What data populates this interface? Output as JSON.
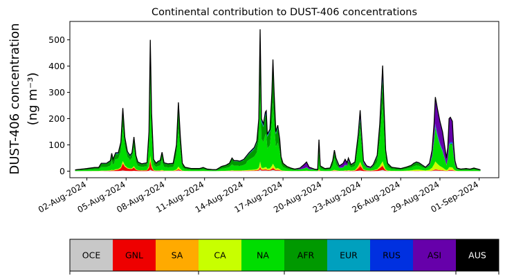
{
  "chart_data": {
    "type": "area",
    "stacked": true,
    "title": "Continental contribution to DUST-406 concentrations",
    "ylabel_line1": "DUST-406 concentration",
    "ylabel_line2": "(ng m⁻³)",
    "ylim": [
      -25,
      570
    ],
    "yticks": [
      0,
      100,
      200,
      300,
      400,
      500
    ],
    "xlim_days": [
      -1.3,
      31.5
    ],
    "xtick_labels": [
      "02-Aug-2024",
      "05-Aug-2024",
      "08-Aug-2024",
      "11-Aug-2024",
      "14-Aug-2024",
      "17-Aug-2024",
      "20-Aug-2024",
      "23-Aug-2024",
      "26-Aug-2024",
      "29-Aug-2024",
      "01-Sep-2024"
    ],
    "grid": false,
    "series": [
      {
        "name": "OCE",
        "color": "#c8c8c8"
      },
      {
        "name": "GNL",
        "color": "#ee0000"
      },
      {
        "name": "SA",
        "color": "#ffaa00"
      },
      {
        "name": "CA",
        "color": "#c8ff00"
      },
      {
        "name": "NA",
        "color": "#00dd00"
      },
      {
        "name": "AFR",
        "color": "#009900"
      },
      {
        "name": "EUR",
        "color": "#00a0be"
      },
      {
        "name": "RUS",
        "color": "#0030e0"
      },
      {
        "name": "ASI",
        "color": "#6600aa"
      },
      {
        "name": "AUS",
        "color": "#000000"
      }
    ],
    "total_points": [
      [
        -0.9,
        5
      ],
      [
        0.0,
        10
      ],
      [
        0.6,
        14
      ],
      [
        0.9,
        14
      ],
      [
        1.1,
        30
      ],
      [
        1.5,
        30
      ],
      [
        1.8,
        40
      ],
      [
        1.9,
        68
      ],
      [
        2.0,
        45
      ],
      [
        2.2,
        70
      ],
      [
        2.4,
        70
      ],
      [
        2.6,
        110
      ],
      [
        2.75,
        240
      ],
      [
        2.9,
        130
      ],
      [
        3.1,
        75
      ],
      [
        3.3,
        60
      ],
      [
        3.45,
        70
      ],
      [
        3.6,
        130
      ],
      [
        3.75,
        60
      ],
      [
        3.9,
        35
      ],
      [
        4.2,
        28
      ],
      [
        4.6,
        32
      ],
      [
        4.75,
        150
      ],
      [
        4.85,
        500
      ],
      [
        4.95,
        220
      ],
      [
        5.1,
        45
      ],
      [
        5.3,
        30
      ],
      [
        5.45,
        38
      ],
      [
        5.6,
        40
      ],
      [
        5.75,
        72
      ],
      [
        5.9,
        32
      ],
      [
        6.2,
        28
      ],
      [
        6.6,
        30
      ],
      [
        6.85,
        100
      ],
      [
        7.0,
        262
      ],
      [
        7.15,
        130
      ],
      [
        7.3,
        30
      ],
      [
        7.5,
        15
      ],
      [
        8.0,
        10
      ],
      [
        8.6,
        10
      ],
      [
        8.9,
        14
      ],
      [
        9.2,
        8
      ],
      [
        9.6,
        6
      ],
      [
        9.9,
        6
      ],
      [
        10.3,
        18
      ],
      [
        10.6,
        22
      ],
      [
        10.9,
        30
      ],
      [
        11.1,
        50
      ],
      [
        11.25,
        40
      ],
      [
        11.5,
        40
      ],
      [
        11.7,
        38
      ],
      [
        12.0,
        45
      ],
      [
        12.4,
        70
      ],
      [
        12.8,
        90
      ],
      [
        13.0,
        115
      ],
      [
        13.15,
        200
      ],
      [
        13.25,
        540
      ],
      [
        13.35,
        200
      ],
      [
        13.5,
        180
      ],
      [
        13.65,
        225
      ],
      [
        13.72,
        230
      ],
      [
        13.8,
        140
      ],
      [
        14.0,
        160
      ],
      [
        14.15,
        300
      ],
      [
        14.23,
        425
      ],
      [
        14.32,
        300
      ],
      [
        14.45,
        150
      ],
      [
        14.6,
        175
      ],
      [
        14.75,
        120
      ],
      [
        14.85,
        55
      ],
      [
        15.0,
        30
      ],
      [
        15.3,
        18
      ],
      [
        15.6,
        12
      ],
      [
        15.9,
        8
      ],
      [
        16.3,
        12
      ],
      [
        16.6,
        25
      ],
      [
        16.8,
        35
      ],
      [
        17.0,
        15
      ],
      [
        17.4,
        8
      ],
      [
        17.65,
        6
      ],
      [
        17.75,
        120
      ],
      [
        17.85,
        20
      ],
      [
        18.2,
        10
      ],
      [
        18.6,
        12
      ],
      [
        18.8,
        40
      ],
      [
        18.93,
        80
      ],
      [
        19.05,
        50
      ],
      [
        19.3,
        20
      ],
      [
        19.6,
        30
      ],
      [
        19.75,
        45
      ],
      [
        19.9,
        32
      ],
      [
        20.0,
        50
      ],
      [
        20.2,
        25
      ],
      [
        20.5,
        35
      ],
      [
        20.75,
        140
      ],
      [
        20.9,
        232
      ],
      [
        21.0,
        150
      ],
      [
        21.15,
        40
      ],
      [
        21.4,
        20
      ],
      [
        21.7,
        15
      ],
      [
        21.9,
        25
      ],
      [
        22.2,
        60
      ],
      [
        22.4,
        180
      ],
      [
        22.55,
        330
      ],
      [
        22.62,
        402
      ],
      [
        22.72,
        250
      ],
      [
        22.85,
        80
      ],
      [
        23.0,
        30
      ],
      [
        23.3,
        15
      ],
      [
        23.7,
        12
      ],
      [
        24.0,
        10
      ],
      [
        24.4,
        15
      ],
      [
        24.8,
        22
      ],
      [
        25.0,
        30
      ],
      [
        25.2,
        35
      ],
      [
        25.4,
        32
      ],
      [
        25.6,
        25
      ],
      [
        25.9,
        15
      ],
      [
        26.2,
        30
      ],
      [
        26.4,
        80
      ],
      [
        26.55,
        180
      ],
      [
        26.65,
        282
      ],
      [
        26.8,
        240
      ],
      [
        27.0,
        190
      ],
      [
        27.2,
        150
      ],
      [
        27.35,
        100
      ],
      [
        27.5,
        50
      ],
      [
        27.6,
        90
      ],
      [
        27.7,
        200
      ],
      [
        27.8,
        205
      ],
      [
        27.95,
        190
      ],
      [
        28.05,
        100
      ],
      [
        28.15,
        40
      ],
      [
        28.3,
        12
      ],
      [
        28.6,
        8
      ],
      [
        29.0,
        10
      ],
      [
        29.3,
        8
      ],
      [
        29.6,
        12
      ],
      [
        29.9,
        8
      ],
      [
        30.1,
        5
      ]
    ]
  },
  "legend_title": "",
  "legend_ticks_after": [
    0,
    2,
    4,
    8
  ]
}
